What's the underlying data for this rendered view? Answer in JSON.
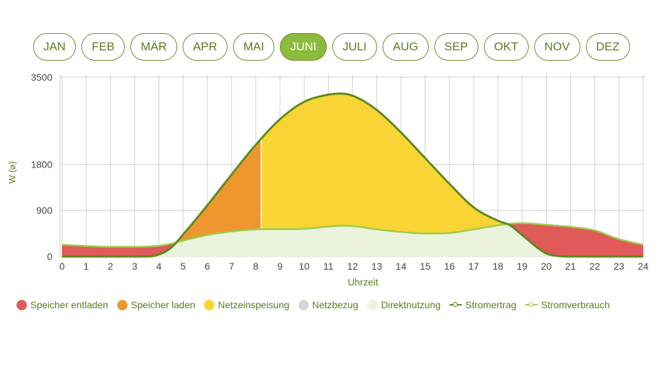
{
  "months": [
    {
      "label": "JAN",
      "active": false
    },
    {
      "label": "FEB",
      "active": false
    },
    {
      "label": "MÄR",
      "active": false
    },
    {
      "label": "APR",
      "active": false
    },
    {
      "label": "MAI",
      "active": false
    },
    {
      "label": "JUNI",
      "active": true
    },
    {
      "label": "JULI",
      "active": false
    },
    {
      "label": "AUG",
      "active": false
    },
    {
      "label": "SEP",
      "active": false
    },
    {
      "label": "OKT",
      "active": false
    },
    {
      "label": "NOV",
      "active": false
    },
    {
      "label": "DEZ",
      "active": false
    }
  ],
  "colors": {
    "speicher_entladen": "#e05a5a",
    "speicher_laden": "#ee972e",
    "netzeinspeisung": "#f8d435",
    "netzbezug": "#d6d6d6",
    "direktnutzung": "#eaf3dc",
    "stromertrag": "#5b8a1a",
    "stromverbrauch": "#9ccb4c",
    "grid": "#d0d0d0",
    "text": "#5b7a1f"
  },
  "legend": [
    {
      "label": "Speicher entladen",
      "type": "dot",
      "color": "#e05a5a"
    },
    {
      "label": "Speicher laden",
      "type": "dot",
      "color": "#ee972e"
    },
    {
      "label": "Netzeinspeisung",
      "type": "dot",
      "color": "#f8d435"
    },
    {
      "label": "Netzbezug",
      "type": "dot",
      "color": "#d6d6d6"
    },
    {
      "label": "Direktnutzung",
      "type": "dot",
      "color": "#eaf3dc"
    },
    {
      "label": "Stromertrag",
      "type": "line",
      "color": "#5b8a1a"
    },
    {
      "label": "Stromverbrauch",
      "type": "line",
      "color": "#9ccb4c"
    }
  ],
  "chart_data": {
    "type": "area",
    "xlabel": "Uhrzeit",
    "ylabel": "W (⌀)",
    "xlim": [
      0,
      24
    ],
    "ylim": [
      0,
      3500
    ],
    "x_ticks": [
      0,
      1,
      2,
      3,
      4,
      5,
      6,
      7,
      8,
      9,
      10,
      11,
      12,
      13,
      14,
      15,
      16,
      17,
      18,
      19,
      20,
      21,
      22,
      23,
      24
    ],
    "y_ticks": [
      0,
      900,
      1800,
      3500
    ],
    "storage_full_hour": 8.2,
    "x": [
      0,
      1,
      2,
      3,
      3.5,
      4,
      4.5,
      5,
      6,
      7,
      8,
      9,
      10,
      11,
      11.5,
      12,
      13,
      14,
      15,
      16,
      17,
      18,
      18.5,
      19,
      20,
      20.5,
      21,
      22,
      23,
      24
    ],
    "series": [
      {
        "name": "Stromertrag",
        "values": [
          0,
          0,
          0,
          0,
          0,
          40,
          170,
          430,
          1000,
          1600,
          2180,
          2680,
          3020,
          3160,
          3180,
          3140,
          2860,
          2420,
          1920,
          1420,
          960,
          700,
          610,
          420,
          60,
          10,
          0,
          0,
          0,
          0
        ]
      },
      {
        "name": "Stromverbrauch",
        "values": [
          230,
          205,
          190,
          190,
          195,
          210,
          250,
          310,
          420,
          490,
          530,
          535,
          540,
          585,
          600,
          595,
          530,
          480,
          450,
          460,
          530,
          610,
          640,
          650,
          620,
          600,
          580,
          510,
          340,
          230
        ]
      }
    ]
  }
}
